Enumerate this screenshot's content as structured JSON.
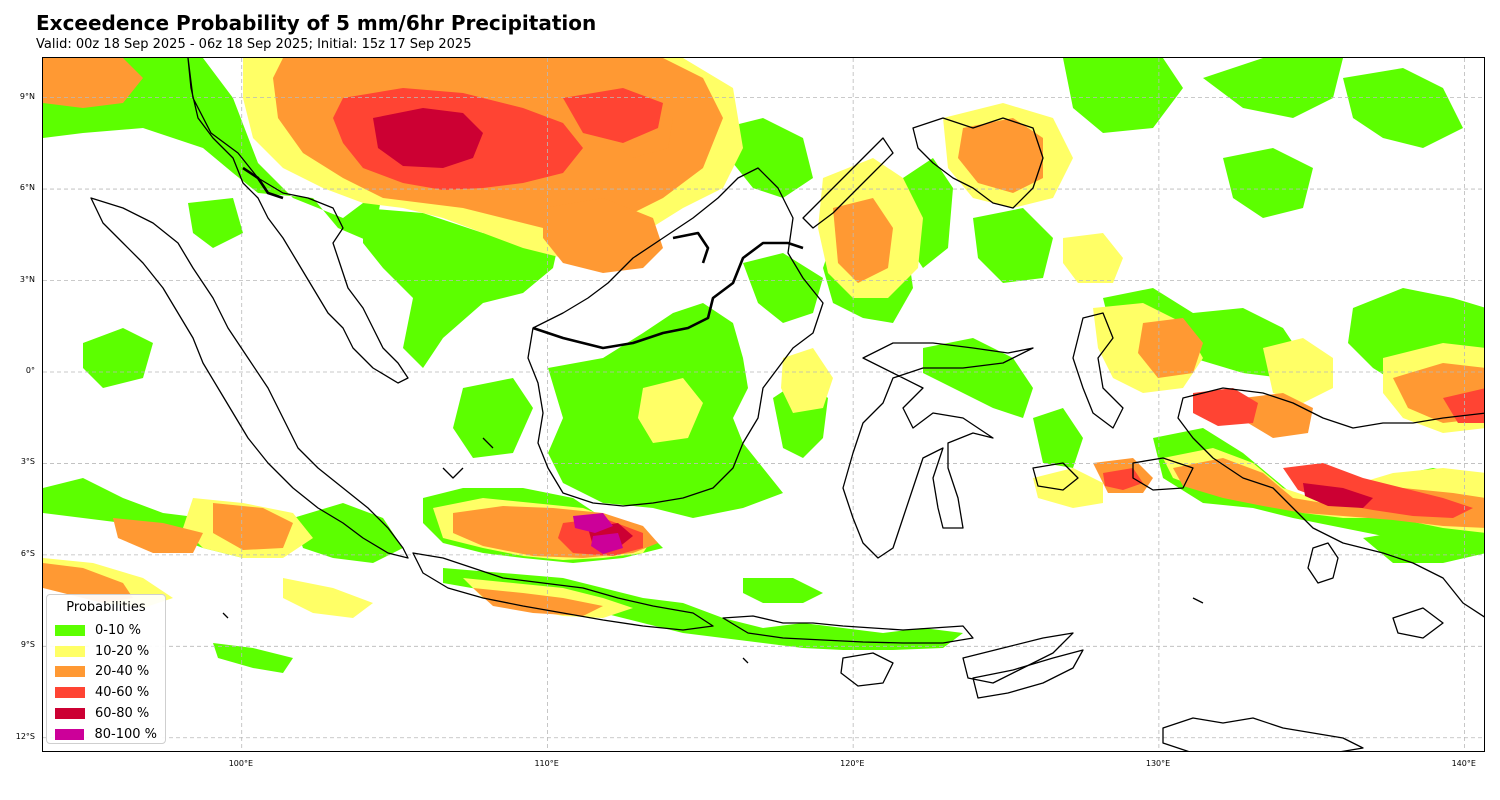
{
  "title": "Exceedence Probability of 5 mm/6hr Precipitation",
  "subtitle": "Valid: 00z 18 Sep 2025 - 06z 18 Sep 2025; Initial: 15z 17 Sep 2025",
  "map": {
    "extent": {
      "lon": [
        93.5,
        140.7
      ],
      "lat": [
        -12.5,
        10.3
      ]
    },
    "lat_ticks": [
      {
        "value": 9,
        "label": "9°N"
      },
      {
        "value": 6,
        "label": "6°N"
      },
      {
        "value": 3,
        "label": "3°N"
      },
      {
        "value": 0,
        "label": "0°"
      },
      {
        "value": -3,
        "label": "3°S"
      },
      {
        "value": -6,
        "label": "6°S"
      },
      {
        "value": -9,
        "label": "9°S"
      },
      {
        "value": -12,
        "label": "12°S"
      }
    ],
    "lon_ticks": [
      {
        "value": 100,
        "label": "100°E"
      },
      {
        "value": 110,
        "label": "110°E"
      },
      {
        "value": 120,
        "label": "120°E"
      },
      {
        "value": 130,
        "label": "130°E"
      },
      {
        "value": 140,
        "label": "140°E"
      }
    ],
    "gridlines": true,
    "colors": {
      "p0_10": "#5cff00",
      "p10_20": "#ffff66",
      "p20_40": "#ff9933",
      "p40_60": "#ff4433",
      "p60_80": "#cc0033",
      "p80_100": "#cc0099",
      "coastline": "#000000"
    }
  },
  "legend": {
    "title": "Probabilities",
    "placement": "lower-left",
    "items": [
      {
        "label": "0-10 %",
        "color": "#5cff00"
      },
      {
        "label": "10-20 %",
        "color": "#ffff66"
      },
      {
        "label": "20-40 %",
        "color": "#ff9933"
      },
      {
        "label": "40-60 %",
        "color": "#ff4433"
      },
      {
        "label": "60-80 %",
        "color": "#cc0033"
      },
      {
        "label": "80-100 %",
        "color": "#cc0099"
      }
    ]
  }
}
